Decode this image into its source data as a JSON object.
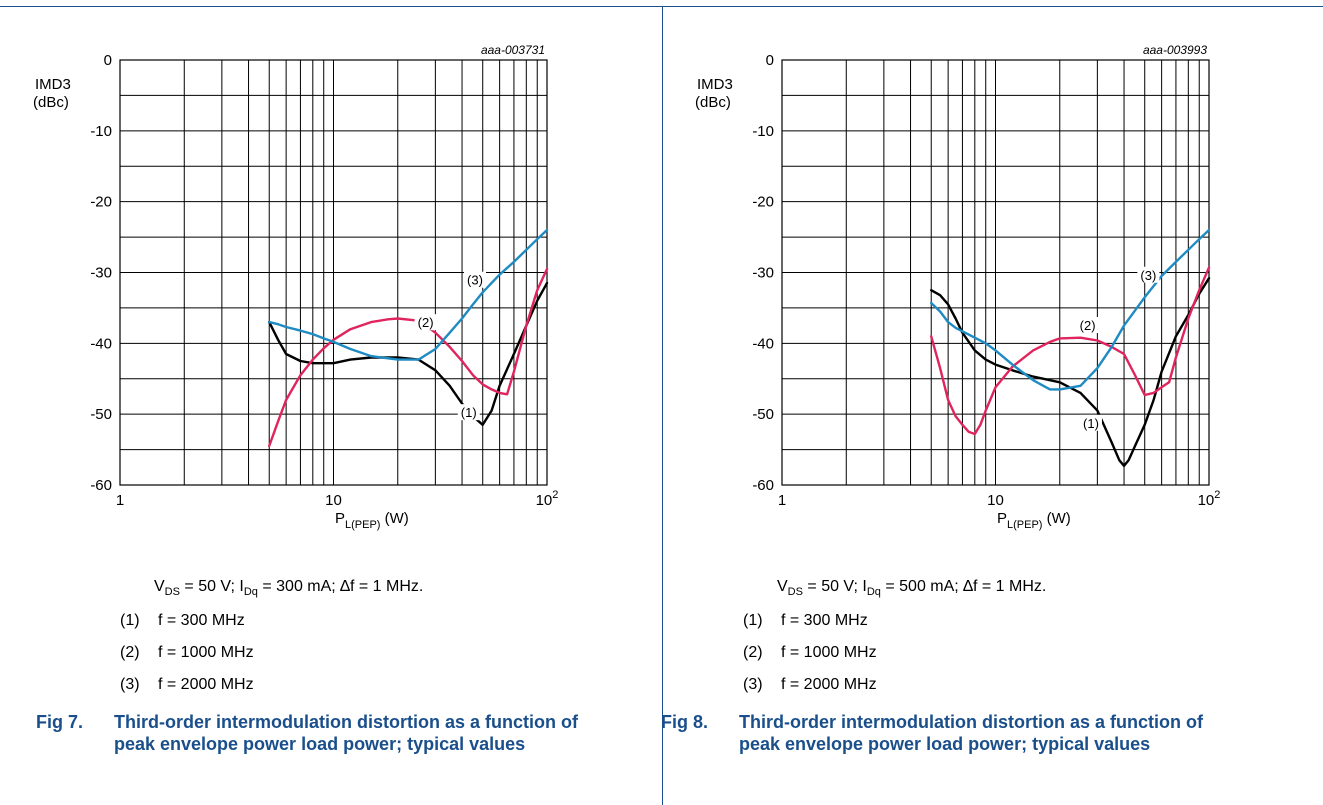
{
  "figures": [
    {
      "fig_number": "Fig 7.",
      "caption": "Third-order intermodulation distortion as a function of peak envelope power load power; typical values",
      "conditions": {
        "vds": "V",
        "vds_sub": "DS",
        "vds_val": " = 50 V; I",
        "idq_sub": "Dq",
        "idq_val": " = 300 mA; ∆f = 1 MHz."
      },
      "notes": [
        {
          "num": "(1)",
          "text": "f = 300 MHz"
        },
        {
          "num": "(2)",
          "text": "f = 1000 MHz"
        },
        {
          "num": "(3)",
          "text": "f = 2000 MHz"
        }
      ]
    },
    {
      "fig_number": "Fig 8.",
      "caption": "Third-order intermodulation distortion as a function of peak envelope power load power; typical values",
      "conditions": {
        "vds": "V",
        "vds_sub": "DS",
        "vds_val": " = 50 V; I",
        "idq_sub": "Dq",
        "idq_val": " = 500 mA; ∆f = 1 MHz."
      },
      "notes": [
        {
          "num": "(1)",
          "text": "f = 300 MHz"
        },
        {
          "num": "(2)",
          "text": "f = 1000 MHz"
        },
        {
          "num": "(3)",
          "text": "f = 2000 MHz"
        }
      ]
    }
  ],
  "chart_data": [
    {
      "type": "line",
      "id_label": "aaa-003731",
      "ylabel": "IMD3",
      "ylabel_unit": "(dBc)",
      "xlabel_main": "P",
      "xlabel_sub": "L(PEP)",
      "xlabel_unit": " (W)",
      "x_scale": "log",
      "xlim": [
        1,
        100
      ],
      "ylim": [
        -60,
        0
      ],
      "x_tick_labels": [
        {
          "value": 1,
          "label": "1"
        },
        {
          "value": 10,
          "label": "10"
        },
        {
          "value": 100,
          "label": "10",
          "sup": "2"
        }
      ],
      "y_tick_labels": [
        {
          "value": 0,
          "label": "0"
        },
        {
          "value": -10,
          "label": "-10"
        },
        {
          "value": -20,
          "label": "-20"
        },
        {
          "value": -30,
          "label": "-30"
        },
        {
          "value": -40,
          "label": "-40"
        },
        {
          "value": -50,
          "label": "-50"
        },
        {
          "value": -60,
          "label": "-60"
        }
      ],
      "grid": true,
      "series": [
        {
          "name": "(1)",
          "color": "#000000",
          "x": [
            5,
            5.5,
            6,
            7,
            8,
            9,
            10,
            12,
            15,
            20,
            25,
            30,
            35,
            40,
            45,
            50,
            55,
            60,
            70,
            80,
            90,
            100
          ],
          "y": [
            -37,
            -39.5,
            -41.5,
            -42.5,
            -42.8,
            -42.8,
            -42.8,
            -42.3,
            -42,
            -42,
            -42.3,
            -43.8,
            -46,
            -48.5,
            -50.3,
            -51.5,
            -49.5,
            -46,
            -41.5,
            -37.5,
            -34,
            -31.5
          ]
        },
        {
          "name": "(2)",
          "color": "#e0245e",
          "x": [
            5,
            5.5,
            6,
            7,
            8,
            9,
            10,
            12,
            15,
            18,
            20,
            25,
            30,
            35,
            40,
            45,
            50,
            55,
            60,
            65,
            70,
            80,
            90,
            100
          ],
          "y": [
            -54.5,
            -51,
            -48,
            -44.5,
            -42.3,
            -40.7,
            -39.5,
            -38,
            -37,
            -36.6,
            -36.5,
            -36.8,
            -38.5,
            -40.5,
            -42.5,
            -44.5,
            -45.8,
            -46.5,
            -47,
            -47.2,
            -44,
            -37.5,
            -32.5,
            -29.5
          ]
        },
        {
          "name": "(3)",
          "color": "#1e8bc3",
          "x": [
            5,
            5.5,
            6,
            7,
            8,
            9,
            10,
            12,
            15,
            20,
            25,
            30,
            35,
            40,
            45,
            50,
            60,
            70,
            80,
            90,
            100
          ],
          "y": [
            -37,
            -37.3,
            -37.7,
            -38.2,
            -38.7,
            -39.3,
            -39.8,
            -40.8,
            -41.8,
            -42.3,
            -42.3,
            -40.8,
            -38.5,
            -36.5,
            -34.5,
            -32.8,
            -30.3,
            -28.5,
            -26.8,
            -25.3,
            -24
          ]
        }
      ],
      "annotations": [
        {
          "text": "(1)",
          "x": 43,
          "y": -50
        },
        {
          "text": "(2)",
          "x": 27,
          "y": -37.3
        },
        {
          "text": "(3)",
          "x": 46,
          "y": -31.3
        }
      ]
    },
    {
      "type": "line",
      "id_label": "aaa-003993",
      "ylabel": "IMD3",
      "ylabel_unit": "(dBc)",
      "xlabel_main": "P",
      "xlabel_sub": "L(PEP)",
      "xlabel_unit": " (W)",
      "x_scale": "log",
      "xlim": [
        1,
        100
      ],
      "ylim": [
        -60,
        0
      ],
      "x_tick_labels": [
        {
          "value": 1,
          "label": "1"
        },
        {
          "value": 10,
          "label": "10"
        },
        {
          "value": 100,
          "label": "10",
          "sup": "2"
        }
      ],
      "y_tick_labels": [
        {
          "value": 0,
          "label": "0"
        },
        {
          "value": -10,
          "label": "-10"
        },
        {
          "value": -20,
          "label": "-20"
        },
        {
          "value": -30,
          "label": "-30"
        },
        {
          "value": -40,
          "label": "-40"
        },
        {
          "value": -50,
          "label": "-50"
        },
        {
          "value": -60,
          "label": "-60"
        }
      ],
      "grid": true,
      "series": [
        {
          "name": "(1)",
          "color": "#000000",
          "x": [
            5,
            5.5,
            6,
            6.5,
            7,
            8,
            9,
            10,
            12,
            15,
            20,
            25,
            30,
            35,
            38,
            40,
            42,
            45,
            50,
            55,
            60,
            70,
            80,
            90,
            100
          ],
          "y": [
            -32.5,
            -33.2,
            -34.5,
            -36.5,
            -38.5,
            -41,
            -42.3,
            -43,
            -43.8,
            -44.7,
            -45.5,
            -47,
            -49.5,
            -54,
            -56.5,
            -57.3,
            -56.5,
            -54.5,
            -51.5,
            -48,
            -44,
            -39,
            -36,
            -33,
            -30.8
          ]
        },
        {
          "name": "(2)",
          "color": "#e0245e",
          "x": [
            5,
            5.5,
            6,
            6.5,
            7,
            7.5,
            8,
            8.5,
            9,
            10,
            12,
            15,
            18,
            20,
            25,
            30,
            35,
            40,
            45,
            50,
            55,
            60,
            65,
            70,
            80,
            90,
            100
          ],
          "y": [
            -39,
            -43.5,
            -48,
            -50.3,
            -51.5,
            -52.5,
            -52.8,
            -51.5,
            -49.5,
            -46.2,
            -43.3,
            -41,
            -39.8,
            -39.3,
            -39.2,
            -39.6,
            -40.5,
            -41.5,
            -44.5,
            -47.3,
            -47,
            -46.2,
            -45.5,
            -42,
            -36.5,
            -32.5,
            -29.3
          ]
        },
        {
          "name": "(3)",
          "color": "#1e8bc3",
          "x": [
            5,
            5.5,
            6,
            6.5,
            7,
            8,
            9,
            10,
            12,
            15,
            18,
            20,
            25,
            30,
            35,
            40,
            50,
            60,
            70,
            80,
            90,
            100
          ],
          "y": [
            -34.3,
            -35.5,
            -37,
            -37.8,
            -38.3,
            -39.2,
            -40,
            -41,
            -43,
            -45.2,
            -46.5,
            -46.5,
            -46,
            -43.5,
            -40.5,
            -37.5,
            -33.5,
            -30.5,
            -28.5,
            -26.8,
            -25.3,
            -24
          ]
        }
      ],
      "annotations": [
        {
          "text": "(1)",
          "x": 28,
          "y": -51.5
        },
        {
          "text": "(2)",
          "x": 27,
          "y": -37.7
        },
        {
          "text": "(3)",
          "x": 52,
          "y": -30.6
        }
      ]
    }
  ]
}
